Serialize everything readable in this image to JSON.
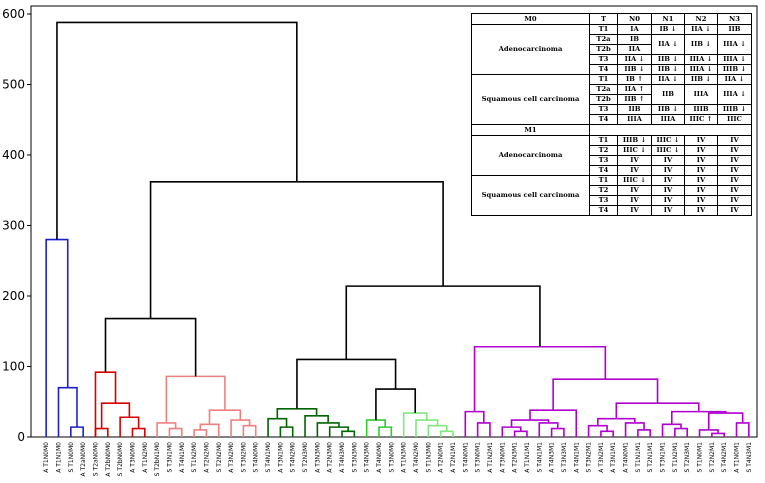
{
  "chart_data": {
    "type": "dendrogram",
    "y_axis": {
      "ylim": [
        0,
        600
      ],
      "ticks": [
        0,
        100,
        200,
        300,
        400,
        500,
        600
      ]
    },
    "leaves": [
      "A T1N0M0",
      "A T1N1M0",
      "S T1N0M0",
      "A T2aN0M0",
      "S T2aN0M0",
      "A T2bN0M0",
      "S T2bN0M0",
      "A T3N0M0",
      "A T1N2M0",
      "S T2bN1M0",
      "S T3N1M0",
      "A T4N1M0",
      "S T1N2M0",
      "A T2N2M0",
      "S T2N2M0",
      "A T3N2M0",
      "S T3N2M0",
      "S T4N0M0",
      "S T4N1M0",
      "A T3N1M0",
      "S T4N2M0",
      "S T2N3M0",
      "A T3N3M0",
      "A T2N3M0",
      "A T4N3M0",
      "S T3N3M0",
      "S T4N3M0",
      "A T4N0M0",
      "S T3N0M0",
      "A T1N3M0",
      "A T4N2M0",
      "S T1N3M0",
      "A T2N0M1",
      "A T2N1M1",
      "S T4N0M1",
      "S T3N0M1",
      "A T1N2M1",
      "A T3N0M1",
      "A T2N3M1",
      "A T1N1M1",
      "S T4N1M1",
      "A T4N3M1",
      "S T3N3M1",
      "A T4N1M1",
      "S T3N2M1",
      "A T3N2M1",
      "A T3N1M1",
      "A T4N0M1",
      "S T1N1M1",
      "S T2N1M1",
      "S T3N1M1",
      "S T1N2M1",
      "S T2N3M1",
      "S T1N0M1",
      "S T2N2M1",
      "S T4N2M1",
      "A T1N0M1",
      "S T4N3M1"
    ],
    "branch_colors": {
      "root": "#000000",
      "blue": "#1f1fd0",
      "red": "#d60000",
      "salmon": "#f08080",
      "darkgreen": "#006400",
      "green": "#2ecc2e",
      "lightgreen": "#7fe87f",
      "purple": "#b000d0"
    },
    "clusters": [
      {
        "name": "blue",
        "color": "blue",
        "leaves": [
          0,
          3
        ]
      },
      {
        "name": "red",
        "color": "red",
        "leaves": [
          4,
          8
        ]
      },
      {
        "name": "salmon",
        "color": "salmon",
        "leaves": [
          9,
          17
        ]
      },
      {
        "name": "darkgreen",
        "color": "darkgreen",
        "leaves": [
          18,
          25
        ]
      },
      {
        "name": "green",
        "color": "green",
        "leaves": [
          26,
          28
        ]
      },
      {
        "name": "lightgreen",
        "color": "lightgreen",
        "leaves": [
          29,
          33
        ]
      },
      {
        "name": "purple",
        "color": "purple",
        "leaves": [
          34,
          57
        ]
      }
    ],
    "merges": [
      {
        "color": "blue",
        "height": 14,
        "children": [
          {
            "leaf": 2
          },
          {
            "leaf": 3
          }
        ]
      },
      {
        "color": "blue",
        "height": 70,
        "children": [
          {
            "leaf": 1
          },
          {
            "merge": 0
          }
        ]
      },
      {
        "color": "blue",
        "height": 280,
        "children": [
          {
            "leaf": 0
          },
          {
            "merge": 1
          }
        ]
      },
      {
        "color": "red",
        "height": 12,
        "children": [
          {
            "leaf": 4
          },
          {
            "leaf": 5
          }
        ]
      },
      {
        "color": "red",
        "height": 12,
        "children": [
          {
            "leaf": 7
          },
          {
            "leaf": 8
          }
        ]
      },
      {
        "color": "red",
        "height": 28,
        "children": [
          {
            "leaf": 6
          },
          {
            "merge": 4
          }
        ]
      },
      {
        "color": "red",
        "height": 48,
        "children": [
          {
            "merge": 3
          },
          {
            "merge": 5
          }
        ]
      },
      {
        "color": "red",
        "height": 92,
        "children": [
          {
            "merge": 6
          },
          {
            "leaf": 4
          }
        ]
      },
      {
        "color": "salmon",
        "height": 12,
        "children": [
          {
            "leaf": 10
          },
          {
            "leaf": 11
          }
        ]
      },
      {
        "color": "salmon",
        "height": 20,
        "children": [
          {
            "leaf": 9
          },
          {
            "merge": 8
          }
        ]
      },
      {
        "color": "salmon",
        "height": 10,
        "children": [
          {
            "leaf": 12
          },
          {
            "leaf": 13
          }
        ]
      },
      {
        "color": "salmon",
        "height": 18,
        "children": [
          {
            "merge": 10
          },
          {
            "leaf": 14
          }
        ]
      },
      {
        "color": "salmon",
        "height": 16,
        "children": [
          {
            "leaf": 16
          },
          {
            "leaf": 17
          }
        ]
      },
      {
        "color": "salmon",
        "height": 24,
        "children": [
          {
            "leaf": 15
          },
          {
            "merge": 12
          }
        ]
      },
      {
        "color": "salmon",
        "height": 38,
        "children": [
          {
            "merge": 11
          },
          {
            "merge": 13
          }
        ]
      },
      {
        "color": "salmon",
        "height": 86,
        "children": [
          {
            "merge": 9
          },
          {
            "merge": 14
          }
        ]
      },
      {
        "color": "black",
        "height": 168,
        "children": [
          {
            "merge": 7
          },
          {
            "merge": 15
          }
        ]
      },
      {
        "color": "darkgreen",
        "height": 14,
        "children": [
          {
            "leaf": 19
          },
          {
            "leaf": 20
          }
        ]
      },
      {
        "color": "darkgreen",
        "height": 26,
        "children": [
          {
            "leaf": 18
          },
          {
            "merge": 17
          }
        ]
      },
      {
        "color": "darkgreen",
        "height": 8,
        "children": [
          {
            "leaf": 24
          },
          {
            "leaf": 25
          }
        ]
      },
      {
        "color": "darkgreen",
        "height": 14,
        "children": [
          {
            "leaf": 23
          },
          {
            "merge": 19
          }
        ]
      },
      {
        "color": "darkgreen",
        "height": 20,
        "children": [
          {
            "leaf": 22
          },
          {
            "merge": 20
          }
        ]
      },
      {
        "color": "darkgreen",
        "height": 30,
        "children": [
          {
            "leaf": 21
          },
          {
            "merge": 21
          }
        ]
      },
      {
        "color": "darkgreen",
        "height": 40,
        "children": [
          {
            "merge": 18
          },
          {
            "merge": 22
          }
        ]
      },
      {
        "color": "green",
        "height": 14,
        "children": [
          {
            "leaf": 27
          },
          {
            "leaf": 28
          }
        ]
      },
      {
        "color": "green",
        "height": 24,
        "children": [
          {
            "leaf": 26
          },
          {
            "merge": 24
          }
        ]
      },
      {
        "color": "lightgreen",
        "height": 8,
        "children": [
          {
            "leaf": 32
          },
          {
            "leaf": 33
          }
        ]
      },
      {
        "color": "lightgreen",
        "height": 16,
        "children": [
          {
            "leaf": 31
          },
          {
            "merge": 26
          }
        ]
      },
      {
        "color": "lightgreen",
        "height": 24,
        "children": [
          {
            "leaf": 30
          },
          {
            "merge": 27
          }
        ]
      },
      {
        "color": "lightgreen",
        "height": 34,
        "children": [
          {
            "leaf": 29
          },
          {
            "merge": 28
          }
        ]
      },
      {
        "color": "black",
        "height": 68,
        "children": [
          {
            "merge": 25
          },
          {
            "merge": 29
          }
        ]
      },
      {
        "color": "black",
        "height": 110,
        "children": [
          {
            "merge": 23
          },
          {
            "merge": 30
          }
        ]
      },
      {
        "color": "purple",
        "height": 20,
        "children": [
          {
            "leaf": 35
          },
          {
            "leaf": 36
          }
        ]
      },
      {
        "color": "purple",
        "height": 36,
        "children": [
          {
            "leaf": 34
          },
          {
            "merge": 32
          }
        ]
      },
      {
        "color": "purple",
        "height": 8,
        "children": [
          {
            "leaf": 38
          },
          {
            "leaf": 39
          }
        ]
      },
      {
        "color": "purple",
        "height": 14,
        "children": [
          {
            "leaf": 37
          },
          {
            "merge": 34
          }
        ]
      },
      {
        "color": "purple",
        "height": 12,
        "children": [
          {
            "leaf": 41
          },
          {
            "leaf": 42
          }
        ]
      },
      {
        "color": "purple",
        "height": 20,
        "children": [
          {
            "leaf": 40
          },
          {
            "merge": 36
          }
        ]
      },
      {
        "color": "purple",
        "height": 24,
        "children": [
          {
            "merge": 35
          },
          {
            "merge": 37
          }
        ]
      },
      {
        "color": "purple",
        "height": 38,
        "children": [
          {
            "merge": 38
          },
          {
            "leaf": 43
          }
        ]
      },
      {
        "color": "purple",
        "height": 8,
        "children": [
          {
            "leaf": 45
          },
          {
            "leaf": 46
          }
        ]
      },
      {
        "color": "purple",
        "height": 16,
        "children": [
          {
            "leaf": 44
          },
          {
            "merge": 40
          }
        ]
      },
      {
        "color": "purple",
        "height": 10,
        "children": [
          {
            "leaf": 48
          },
          {
            "leaf": 49
          }
        ]
      },
      {
        "color": "purple",
        "height": 20,
        "children": [
          {
            "leaf": 47
          },
          {
            "merge": 42
          }
        ]
      },
      {
        "color": "purple",
        "height": 26,
        "children": [
          {
            "merge": 41
          },
          {
            "merge": 43
          }
        ]
      },
      {
        "color": "purple",
        "height": 12,
        "children": [
          {
            "leaf": 51
          },
          {
            "leaf": 52
          }
        ]
      },
      {
        "color": "purple",
        "height": 18,
        "children": [
          {
            "leaf": 50
          },
          {
            "merge": 45
          }
        ]
      },
      {
        "color": "purple",
        "height": 5,
        "children": [
          {
            "leaf": 54
          },
          {
            "leaf": 55
          }
        ]
      },
      {
        "color": "purple",
        "height": 10,
        "children": [
          {
            "leaf": 53
          },
          {
            "merge": 47
          }
        ]
      },
      {
        "color": "purple",
        "height": 20,
        "children": [
          {
            "leaf": 56
          },
          {
            "leaf": 57
          }
        ]
      },
      {
        "color": "purple",
        "height": 34,
        "children": [
          {
            "merge": 48
          },
          {
            "merge": 49
          }
        ]
      },
      {
        "color": "purple",
        "height": 36,
        "children": [
          {
            "merge": 46
          },
          {
            "merge": 50
          }
        ]
      },
      {
        "color": "purple",
        "height": 48,
        "children": [
          {
            "merge": 44
          },
          {
            "merge": 51
          }
        ]
      },
      {
        "color": "purple",
        "height": 82,
        "children": [
          {
            "merge": 39
          },
          {
            "merge": 52
          }
        ]
      },
      {
        "color": "purple",
        "height": 128,
        "children": [
          {
            "merge": 33
          },
          {
            "merge": 53
          }
        ]
      },
      {
        "color": "black",
        "height": 214,
        "children": [
          {
            "merge": 31
          },
          {
            "merge": 54
          }
        ]
      },
      {
        "color": "black",
        "height": 362,
        "children": [
          {
            "merge": 16
          },
          {
            "merge": 55
          }
        ]
      },
      {
        "color": "black",
        "height": 588,
        "children": [
          {
            "merge": 2
          },
          {
            "merge": 56
          }
        ]
      }
    ]
  },
  "table": {
    "m0_header": "M0",
    "m1_header": "M1",
    "columns": [
      "T",
      "N0",
      "N1",
      "N2",
      "N3"
    ],
    "adeno": "Adenocarcinoma",
    "squamous": "Squamous cell carcinoma",
    "m0_adeno": {
      "t1": [
        "T1",
        "IA",
        "IB ↓",
        "IIA ↓",
        "IIB"
      ],
      "t2a": [
        "T2a",
        "IB"
      ],
      "t2b": [
        "T2b",
        "IIA"
      ],
      "t2_merged": [
        "IIA ↓",
        "IIB ↓",
        "IIIA ↓"
      ],
      "t3": [
        "T3",
        "IIA ↓",
        "IIB ↓",
        "IIIA ↓",
        "IIIA ↓"
      ],
      "t4": [
        "T4",
        "IIB ↓",
        "IIB ↓",
        "IIIA ↓",
        "IIIB ↓"
      ]
    },
    "m0_squam": {
      "t1": [
        "T1",
        "IB ↑",
        "IIA ↓",
        "IIB ↓",
        "IIA ↓"
      ],
      "t2a": [
        "T2a",
        "IIA ↑"
      ],
      "t2b": [
        "T2b",
        "IIB ↑"
      ],
      "t2_merged": [
        "IIB",
        "IIIA",
        "IIIA ↓"
      ],
      "t3": [
        "T3",
        "IIB",
        "IIB ↓",
        "IIIB",
        "IIIB ↓"
      ],
      "t4": [
        "T4",
        "IIIA",
        "IIIA",
        "IIIC ↑",
        "IIIC"
      ]
    },
    "m1_adeno": [
      [
        "T1",
        "IIIB ↓",
        "IIIC ↓",
        "IV",
        "IV"
      ],
      [
        "T2",
        "IIIC ↓",
        "IIIC ↓",
        "IV",
        "IV"
      ],
      [
        "T3",
        "IV",
        "IV",
        "IV",
        "IV"
      ],
      [
        "T4",
        "IV",
        "IV",
        "IV",
        "IV"
      ]
    ],
    "m1_squam": [
      [
        "T1",
        "IIIC ↓",
        "IV",
        "IV",
        "IV"
      ],
      [
        "T2",
        "IV",
        "IV",
        "IV",
        "IV"
      ],
      [
        "T3",
        "IV",
        "IV",
        "IV",
        "IV"
      ],
      [
        "T4",
        "IV",
        "IV",
        "IV",
        "IV"
      ]
    ]
  }
}
